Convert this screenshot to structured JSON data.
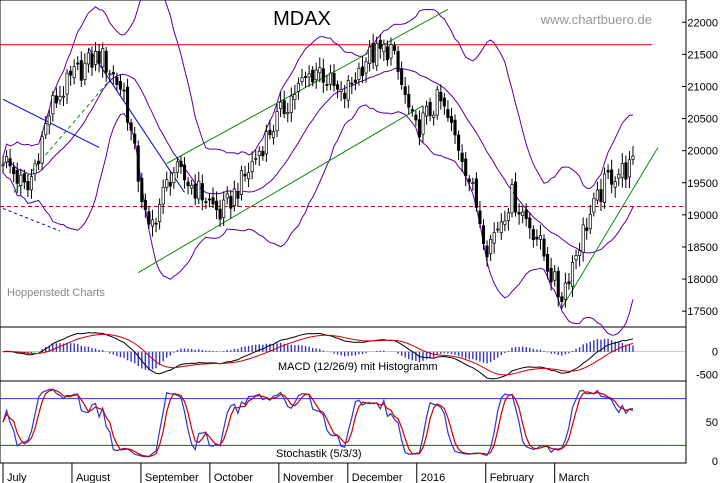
{
  "title": "MDAX",
  "watermark": "www.chartbuero.de",
  "source_label": "Hoppenstedt Charts",
  "macd_label": "MACD (12/26/9) mit Histogramm",
  "stoch_label": "Stochastik (5/3/3)",
  "x_axis": {
    "ticks": [
      "July",
      "August",
      "September",
      "October",
      "November",
      "December",
      "2016",
      "February",
      "March"
    ]
  },
  "colors": {
    "price": "#000000",
    "bollinger": "#5500aa",
    "trendline": "#118811",
    "resistance": "#cc0000",
    "downtrend": "#0000cc",
    "macd": "#000000",
    "signal": "#cc0000",
    "histogram": "#3333cc",
    "stoch_k": "#3333cc",
    "stoch_d": "#cc0000"
  },
  "chart_data": [
    {
      "type": "candlestick",
      "title": "MDAX",
      "ylim": [
        17300,
        22300
      ],
      "y_ticks": [
        17500,
        18000,
        18500,
        19000,
        19500,
        20000,
        20500,
        21000,
        21500,
        22000
      ],
      "resistance_level": 21650,
      "support_level": 19130,
      "close_series": [
        {
          "x": "Jul 2015",
          "y": 19900
        },
        {
          "x": "early Jul",
          "y": 19350
        },
        {
          "x": "mid Jul",
          "y": 20700
        },
        {
          "x": "late Jul",
          "y": 21200
        },
        {
          "x": "early Aug",
          "y": 21500
        },
        {
          "x": "mid Aug",
          "y": 20900
        },
        {
          "x": "late Aug",
          "y": 18700
        },
        {
          "x": "early Sep",
          "y": 19700
        },
        {
          "x": "mid Sep",
          "y": 19400
        },
        {
          "x": "late Sep",
          "y": 19000
        },
        {
          "x": "early Oct",
          "y": 19600
        },
        {
          "x": "mid Oct",
          "y": 20300
        },
        {
          "x": "late Oct",
          "y": 20900
        },
        {
          "x": "early Nov",
          "y": 21300
        },
        {
          "x": "mid Nov",
          "y": 20800
        },
        {
          "x": "late Nov",
          "y": 21450
        },
        {
          "x": "early Dec",
          "y": 21600
        },
        {
          "x": "mid Dec",
          "y": 20300
        },
        {
          "x": "late Dec",
          "y": 20800
        },
        {
          "x": "early Jan 2016",
          "y": 19900
        },
        {
          "x": "mid Jan",
          "y": 18500
        },
        {
          "x": "late Jan",
          "y": 19300
        },
        {
          "x": "early Feb",
          "y": 18700
        },
        {
          "x": "mid Feb",
          "y": 17700
        },
        {
          "x": "late Feb",
          "y": 18800
        },
        {
          "x": "early Mar",
          "y": 19600
        },
        {
          "x": "Mar",
          "y": 19750
        }
      ]
    },
    {
      "type": "line",
      "title": "MACD (12/26/9) mit Histogramm",
      "ylim": [
        -600,
        500
      ],
      "y_ticks": [
        -500,
        0
      ]
    },
    {
      "type": "line",
      "title": "Stochastik (5/3/3)",
      "ylim": [
        0,
        100
      ],
      "y_ticks": [
        0,
        50
      ],
      "levels": [
        20,
        80
      ]
    }
  ]
}
